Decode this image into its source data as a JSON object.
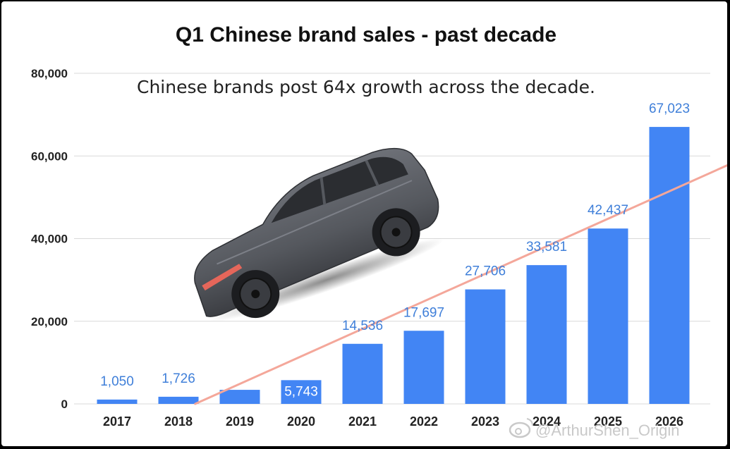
{
  "chart_data": {
    "type": "bar",
    "title": "Q1 Chinese brand sales - past decade",
    "annotation": "Chinese brands post 64x growth across the decade.",
    "categories": [
      "2017",
      "2018",
      "2019",
      "2020",
      "2021",
      "2022",
      "2023",
      "2024",
      "2025",
      "2026"
    ],
    "values": [
      1050,
      1726,
      3400,
      5743,
      14536,
      17697,
      27706,
      33581,
      42437,
      67023
    ],
    "data_labels": [
      "1,050",
      "1,726",
      "",
      "5,743",
      "14,536",
      "17,697",
      "27,706",
      "33,581",
      "42,437",
      "67,023"
    ],
    "ylim": [
      0,
      80000
    ],
    "yticks": [
      0,
      20000,
      40000,
      60000,
      80000
    ],
    "ytick_labels": [
      "0",
      "20,000",
      "40,000",
      "60,000",
      "80,000"
    ],
    "grid": true,
    "xlabel": "",
    "ylabel": "",
    "trendline": {
      "type": "linear",
      "color": "#f4a79a"
    },
    "colors": {
      "bar": "#4285f4",
      "label": "#3f7fd9",
      "grid": "#d9d9d9",
      "trend": "#f4a79a"
    }
  },
  "watermark": "@ArthurShen_Origin",
  "image": {
    "icon": "suv-car-illustration"
  }
}
